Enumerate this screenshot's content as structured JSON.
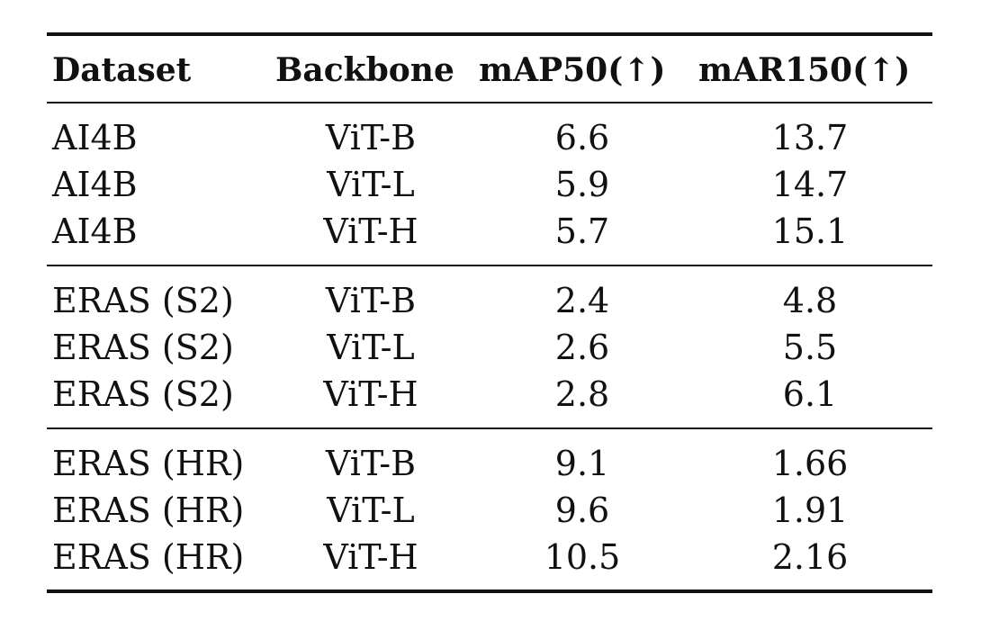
{
  "table": {
    "headers": [
      "Dataset",
      "Backbone",
      "mAP50(↑)",
      "mAR150(↑)"
    ],
    "groups": [
      {
        "rows": [
          [
            "AI4B",
            "ViT-B",
            "6.6",
            "13.7"
          ],
          [
            "AI4B",
            "ViT-L",
            "5.9",
            "14.7"
          ],
          [
            "AI4B",
            "ViT-H",
            "5.7",
            "15.1"
          ]
        ]
      },
      {
        "rows": [
          [
            "ERAS (S2)",
            "ViT-B",
            "2.4",
            "4.8"
          ],
          [
            "ERAS (S2)",
            "ViT-L",
            "2.6",
            "5.5"
          ],
          [
            "ERAS (S2)",
            "ViT-H",
            "2.8",
            "6.1"
          ]
        ]
      },
      {
        "rows": [
          [
            "ERAS (HR)",
            "ViT-B",
            "9.1",
            "1.66"
          ],
          [
            "ERAS (HR)",
            "ViT-L",
            "9.6",
            "1.91"
          ],
          [
            "ERAS (HR)",
            "ViT-H",
            "10.5",
            "2.16"
          ]
        ]
      }
    ]
  }
}
